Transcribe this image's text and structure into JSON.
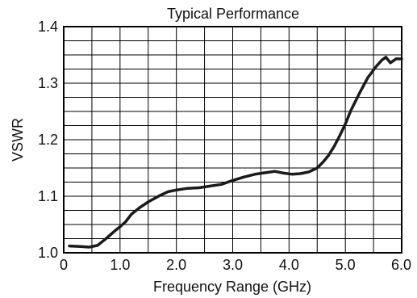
{
  "chart_data": {
    "type": "line",
    "title": "Typical Performance",
    "xlabel": "Frequency Range (GHz)",
    "ylabel": "VSWR",
    "xlim": [
      0,
      6.0
    ],
    "ylim": [
      1.0,
      1.4
    ],
    "x_ticks": [
      0,
      1.0,
      2.0,
      3.0,
      4.0,
      5.0,
      6.0
    ],
    "x_tick_labels": [
      "0",
      "1.0",
      "2.0",
      "3.0",
      "4.0",
      "5.0",
      "6.0"
    ],
    "y_ticks": [
      1.0,
      1.1,
      1.2,
      1.3,
      1.4
    ],
    "y_tick_labels": [
      "1.0",
      "1.1",
      "1.2",
      "1.3",
      "1.4"
    ],
    "x_gridlines": [
      0.5,
      1.0,
      1.5,
      2.0,
      2.5,
      3.0,
      3.5,
      4.0,
      4.5,
      5.0,
      5.5
    ],
    "y_gridlines": [
      1.025,
      1.05,
      1.075,
      1.1,
      1.125,
      1.15,
      1.175,
      1.2,
      1.225,
      1.25,
      1.275,
      1.3,
      1.325,
      1.35,
      1.375
    ],
    "grid": true,
    "legend": "none",
    "line_color": "#1a1a1a",
    "series": [
      {
        "x": [
          0.1,
          0.3,
          0.45,
          0.6,
          0.75,
          0.9,
          1.0,
          1.1,
          1.2,
          1.35,
          1.5,
          1.7,
          1.85,
          2.0,
          2.2,
          2.4,
          2.6,
          2.8,
          3.0,
          3.2,
          3.4,
          3.6,
          3.75,
          3.9,
          4.05,
          4.2,
          4.35,
          4.5,
          4.6,
          4.7,
          4.8,
          4.9,
          5.0,
          5.1,
          5.25,
          5.4,
          5.55,
          5.65,
          5.72,
          5.8,
          5.9,
          6.0
        ],
        "y": [
          1.012,
          1.011,
          1.01,
          1.013,
          1.025,
          1.038,
          1.046,
          1.055,
          1.068,
          1.08,
          1.09,
          1.101,
          1.108,
          1.111,
          1.114,
          1.115,
          1.118,
          1.121,
          1.128,
          1.134,
          1.139,
          1.142,
          1.144,
          1.141,
          1.139,
          1.14,
          1.143,
          1.15,
          1.16,
          1.172,
          1.188,
          1.207,
          1.228,
          1.252,
          1.282,
          1.31,
          1.33,
          1.341,
          1.346,
          1.336,
          1.343,
          1.343
        ]
      }
    ]
  }
}
